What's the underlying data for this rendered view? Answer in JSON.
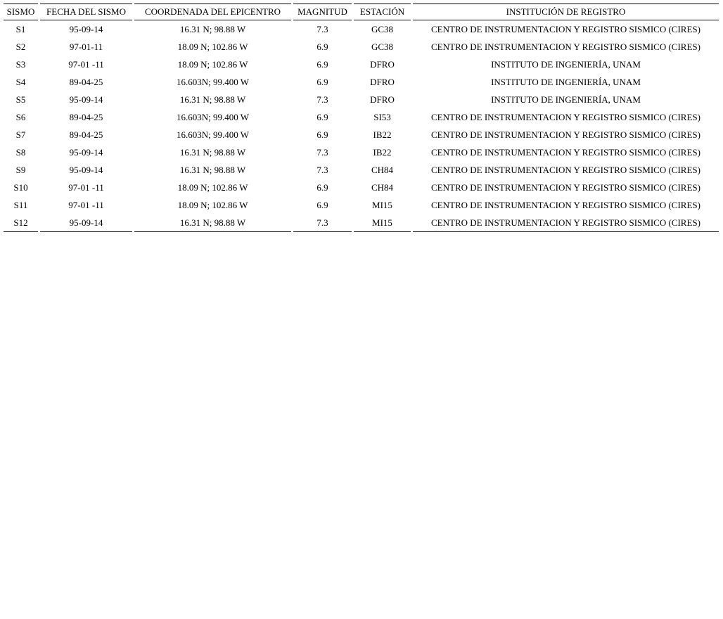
{
  "headers": [
    "SISMO",
    "FECHA DEL SISMO",
    "COORDENADA DEL EPICENTRO",
    "MAGNITUD",
    "ESTACIÓN",
    "INSTITUCIÓN DE REGISTRO"
  ],
  "rows": [
    [
      "S1",
      "95-09-14",
      "16.31 N; 98.88 W",
      "7.3",
      "GC38",
      "CENTRO DE INSTRUMENTACION Y REGISTRO SISMICO (CIRES)"
    ],
    [
      "S2",
      "97-01-11",
      "18.09 N; 102.86 W",
      "6.9",
      "GC38",
      "CENTRO DE INSTRUMENTACION Y REGISTRO SISMICO (CIRES)"
    ],
    [
      "S3",
      "97-01 -11",
      "18.09 N; 102.86 W",
      "6.9",
      "DFRO",
      "INSTITUTO DE INGENIERÍA, UNAM"
    ],
    [
      "S4",
      "89-04-25",
      "16.603N; 99.400 W",
      "6.9",
      "DFRO",
      "INSTITUTO DE INGENIERÍA, UNAM"
    ],
    [
      "S5",
      "95-09-14",
      "16.31 N; 98.88 W",
      "7.3",
      "DFRO",
      "INSTITUTO DE INGENIERÍA, UNAM"
    ],
    [
      "S6",
      "89-04-25",
      "16.603N; 99.400 W",
      "6.9",
      "SI53",
      "CENTRO DE INSTRUMENTACION Y REGISTRO SISMICO (CIRES)"
    ],
    [
      "S7",
      "89-04-25",
      "16.603N; 99.400 W",
      "6.9",
      "IB22",
      "CENTRO DE INSTRUMENTACION Y REGISTRO SISMICO (CIRES)"
    ],
    [
      "S8",
      "95-09-14",
      "16.31 N; 98.88 W",
      "7.3",
      "IB22",
      "CENTRO DE INSTRUMENTACION Y REGISTRO SISMICO (CIRES)"
    ],
    [
      "S9",
      "95-09-14",
      "16.31 N; 98.88 W",
      "7.3",
      "CH84",
      "CENTRO DE INSTRUMENTACION Y REGISTRO SISMICO (CIRES)"
    ],
    [
      "S10",
      "97-01 -11",
      "18.09 N; 102.86 W",
      "6.9",
      "CH84",
      "CENTRO DE INSTRUMENTACION Y REGISTRO SISMICO (CIRES)"
    ],
    [
      "S11",
      "97-01 -11",
      "18.09 N; 102.86 W",
      "6.9",
      "MI15",
      "CENTRO DE INSTRUMENTACION Y REGISTRO SISMICO (CIRES)"
    ],
    [
      "S12",
      "95-09-14",
      "16.31 N; 98.88 W",
      "7.3",
      "MI15",
      "CENTRO DE INSTRUMENTACION Y REGISTRO SISMICO (CIRES)"
    ]
  ]
}
